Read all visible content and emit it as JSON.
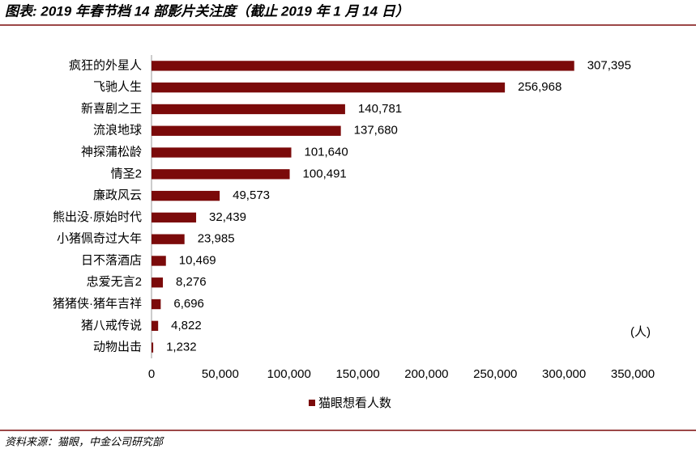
{
  "chart_data": {
    "type": "hbar",
    "title": "图表: 2019 年春节档 14 部影片关注度（截止 2019 年 1 月 14 日）",
    "unit_label": "(人)",
    "source": "资料来源：猫眼，中金公司研究部",
    "categories": [
      "疯狂的外星人",
      "飞驰人生",
      "新喜剧之王",
      "流浪地球",
      "神探蒲松龄",
      "情圣2",
      "廉政风云",
      "熊出没·原始时代",
      "小猪佩奇过大年",
      "日不落酒店",
      "忠爱无言2",
      "猪猪侠·猪年吉祥",
      "猪八戒传说",
      "动物出击"
    ],
    "series": [
      {
        "name": "猫眼想看人数",
        "color": "#7b0a0a",
        "values": [
          307395,
          256968,
          140781,
          137680,
          101640,
          100491,
          49573,
          32439,
          23985,
          10469,
          8276,
          6696,
          4822,
          1232
        ],
        "value_labels": [
          "307,395",
          "256,968",
          "140,781",
          "137,680",
          "101,640",
          "100,491",
          "49,573",
          "32,439",
          "23,985",
          "10,469",
          "8,276",
          "6,696",
          "4,822",
          "1,232"
        ]
      }
    ],
    "xlim": [
      0,
      350000
    ],
    "xticks": [
      0,
      {
        "value": 50000,
        "label": "50,000"
      },
      {
        "value": 100000,
        "label": "100,000"
      },
      {
        "value": 150000,
        "label": "150,000"
      },
      {
        "value": 200000,
        "label": "200,000"
      },
      {
        "value": 250000,
        "label": "250,000"
      },
      {
        "value": 300000,
        "label": "300,000"
      },
      {
        "value": 350000,
        "label": "350,000"
      }
    ],
    "legend": "bottom"
  }
}
